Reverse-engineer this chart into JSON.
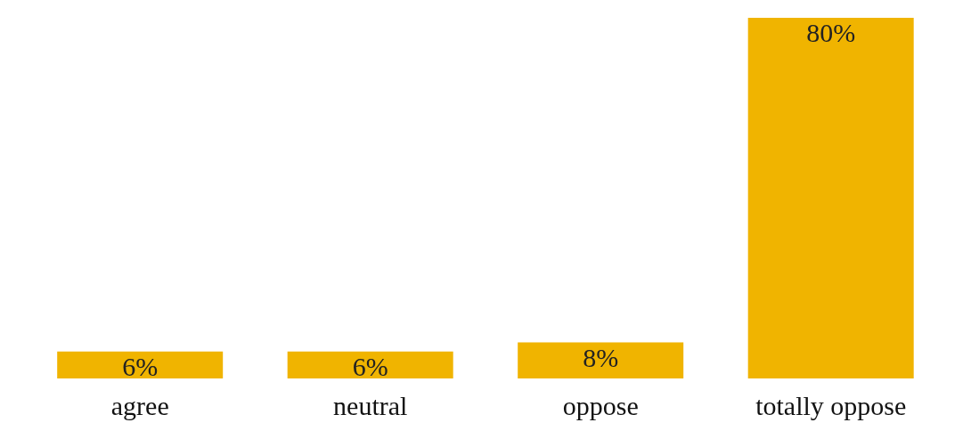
{
  "chart_data": {
    "type": "bar",
    "categories": [
      "agree",
      "neutral",
      "oppose",
      "totally oppose"
    ],
    "values": [
      6,
      6,
      8,
      80
    ],
    "value_labels": [
      "6%",
      "6%",
      "8%",
      "80%"
    ],
    "color": "#f0b400"
  }
}
